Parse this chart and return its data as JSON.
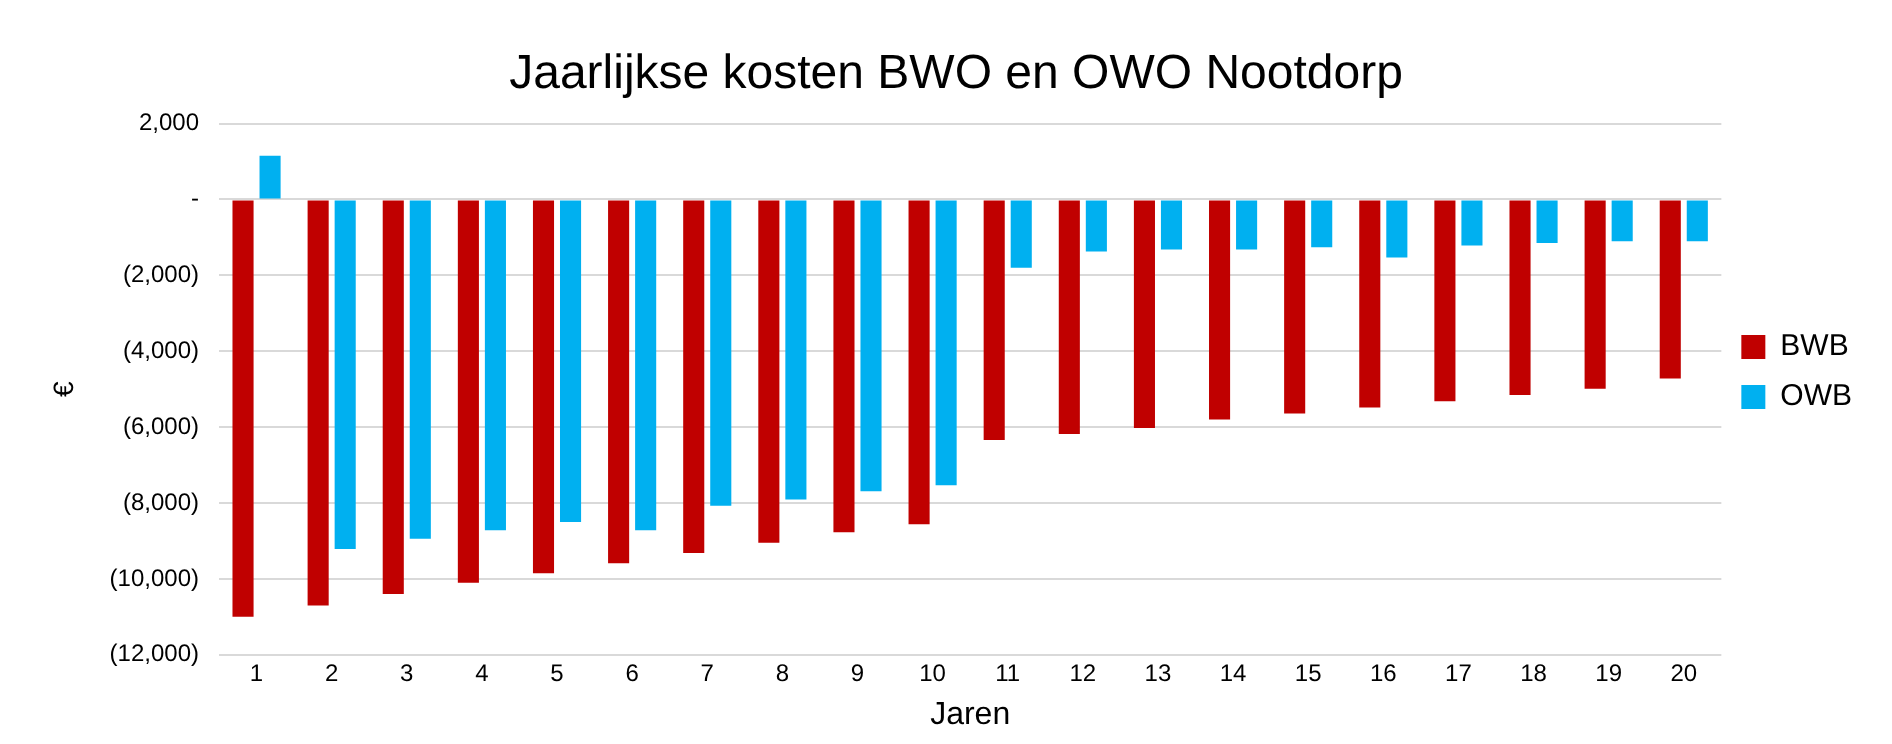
{
  "chart_data": {
    "type": "bar",
    "title": "Jaarlijkse kosten BWO en OWO Nootdorp",
    "xlabel": "Jaren",
    "ylabel": "€",
    "categories": [
      "1",
      "2",
      "3",
      "4",
      "5",
      "6",
      "7",
      "8",
      "9",
      "10",
      "11",
      "12",
      "13",
      "14",
      "15",
      "16",
      "17",
      "18",
      "19",
      "20"
    ],
    "series": [
      {
        "name": "BWB",
        "color": "#c00000",
        "values": [
          -11000,
          -10700,
          -10400,
          -10100,
          -9850,
          -9590,
          -9320,
          -9050,
          -8770,
          -8560,
          -6340,
          -6180,
          -6020,
          -5800,
          -5640,
          -5480,
          -5320,
          -5150,
          -4990,
          -4720
        ]
      },
      {
        "name": "OWB",
        "color": "#00b0f0",
        "values": [
          1150,
          -9210,
          -8940,
          -8720,
          -8500,
          -8720,
          -8070,
          -7910,
          -7690,
          -7530,
          -1800,
          -1370,
          -1320,
          -1320,
          -1260,
          -1530,
          -1210,
          -1150,
          -1100,
          -1100
        ]
      }
    ],
    "ylim": [
      -12000,
      2000
    ],
    "yticks": [
      {
        "value": -12000,
        "label": "(12,000)"
      },
      {
        "value": -10000,
        "label": "(10,000)"
      },
      {
        "value": -8000,
        "label": "(8,000)"
      },
      {
        "value": -6000,
        "label": "(6,000)"
      },
      {
        "value": -4000,
        "label": "(4,000)"
      },
      {
        "value": -2000,
        "label": "(2,000)"
      },
      {
        "value": 0,
        "label": "-"
      },
      {
        "value": 2000,
        "label": "2,000"
      }
    ],
    "grid": "y",
    "legend": "right"
  }
}
